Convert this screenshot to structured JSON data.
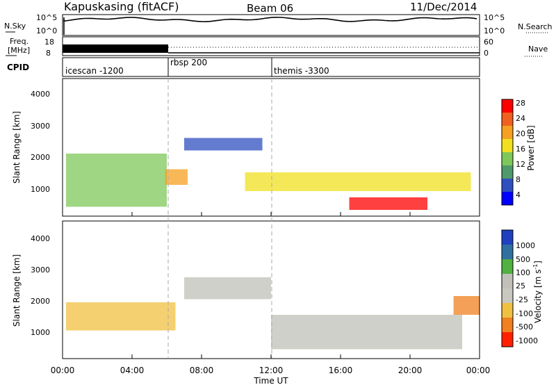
{
  "header": {
    "station": "Kapuskasing (fitACF)",
    "beam": "Beam 06",
    "date": "11/Dec/2014"
  },
  "sky_panel": {
    "left_label": "N.Sky",
    "left_ticks": [
      "10^5",
      "10^0"
    ],
    "right_ticks": [
      "10^5",
      "10^0"
    ],
    "right_label": "N.Search"
  },
  "freq_panel": {
    "left_label_line1": "Freq.",
    "left_label_line2": "[MHz]",
    "left_ticks": [
      "18",
      "8"
    ],
    "right_ticks": [
      "60",
      "0"
    ],
    "right_label": "Nave"
  },
  "cpid_panel": {
    "label": "CPID",
    "segments": [
      {
        "name": "icescan -1200",
        "start_hour": 0,
        "end_hour": 6
      },
      {
        "name": "rbsp 200",
        "start_hour": 6,
        "end_hour": 12
      },
      {
        "name": "themis -3300",
        "start_hour": 12,
        "end_hour": 24
      }
    ]
  },
  "power_panel": {
    "ylabel": "Slant Range [km]",
    "yticks": [
      "4000",
      "3000",
      "2000",
      "1000"
    ],
    "colorbar_label": "Power [dB]",
    "colorbar_ticks": [
      "28",
      "24",
      "20",
      "16",
      "12",
      "8",
      "4"
    ]
  },
  "velocity_panel": {
    "ylabel": "Slant Range [km]",
    "yticks": [
      "4000",
      "3000",
      "2000",
      "1000"
    ],
    "colorbar_label": "Velocity [m s",
    "colorbar_label_sup": "-1",
    "colorbar_label_close": "]",
    "colorbar_ticks": [
      "1000",
      "500",
      "100",
      "25",
      "-25",
      "-100",
      "-500",
      "-1000"
    ]
  },
  "xaxis": {
    "label": "Time UT",
    "ticks": [
      "00:00",
      "04:00",
      "08:00",
      "12:00",
      "16:00",
      "20:00",
      "00:00"
    ]
  },
  "colors": {
    "power_scale": [
      "#0000ff",
      "#3050c0",
      "#4f9a6a",
      "#7ec85a",
      "#f0e020",
      "#f5a020",
      "#f06020",
      "#ff0000"
    ],
    "velocity_scale": [
      "#2040c0",
      "#3070a0",
      "#50b040",
      "#c0c0b8",
      "#c8c8c0",
      "#f0c040",
      "#f08020",
      "#ff2000"
    ]
  },
  "chart_data": [
    {
      "type": "heatmap",
      "title": "Power",
      "xlabel": "Time UT",
      "ylabel": "Slant Range [km]",
      "xlim": [
        0,
        24
      ],
      "ylim": [
        200,
        4600
      ],
      "zlabel": "Power [dB]",
      "zlim": [
        0,
        30
      ],
      "regions": [
        {
          "t0": 0.2,
          "t1": 6.0,
          "r0": 500,
          "r1": 2200,
          "value": 14
        },
        {
          "t0": 5.9,
          "t1": 7.2,
          "r0": 1200,
          "r1": 1700,
          "value": 20
        },
        {
          "t0": 7.0,
          "t1": 11.5,
          "r0": 2300,
          "r1": 2700,
          "value": 5
        },
        {
          "t0": 10.5,
          "t1": 23.5,
          "r0": 1000,
          "r1": 1600,
          "value": 16
        },
        {
          "t0": 16.5,
          "t1": 21.0,
          "r0": 400,
          "r1": 800,
          "value": 28
        }
      ]
    },
    {
      "type": "heatmap",
      "title": "Velocity",
      "xlabel": "Time UT",
      "ylabel": "Slant Range [km]",
      "xlim": [
        0,
        24
      ],
      "ylim": [
        200,
        4600
      ],
      "zlabel": "Velocity [m s-1]",
      "zlim": [
        -1000,
        1000
      ],
      "regions": [
        {
          "t0": 0.2,
          "t1": 6.5,
          "r0": 1100,
          "r1": 2000,
          "value": -300
        },
        {
          "t0": 7.0,
          "t1": 12.0,
          "r0": 2100,
          "r1": 2800,
          "value": 0
        },
        {
          "t0": 12.0,
          "t1": 23.0,
          "r0": 500,
          "r1": 1600,
          "value": 0
        },
        {
          "t0": 22.5,
          "t1": 24.0,
          "r0": 1600,
          "r1": 2200,
          "value": -500
        }
      ]
    }
  ]
}
